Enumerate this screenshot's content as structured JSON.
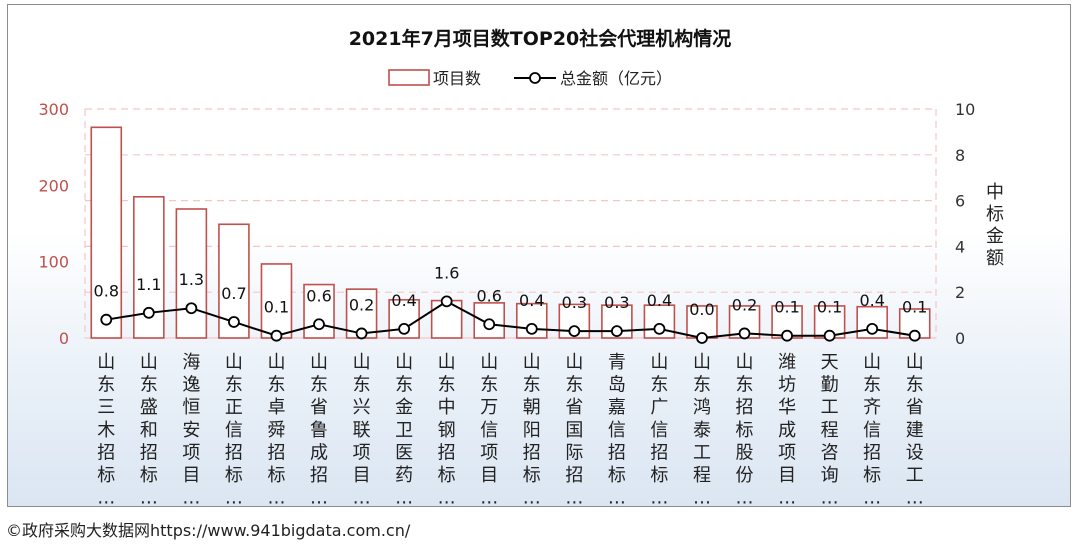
{
  "chart_data": {
    "type": "bar",
    "title": "2021年7月项目数TOP20社会代理机构情况",
    "categories": [
      "山东三木招标…",
      "山东盛和招标…",
      "海逸恒安项目…",
      "山东正信招标…",
      "山东卓舜招标…",
      "山东省鲁成招…",
      "山东兴联项目…",
      "山东金卫医药…",
      "山东中钢招标…",
      "山东万信项目…",
      "山东朝阳招标…",
      "山东省国际招…",
      "青岛嘉信招标…",
      "山东广信招标…",
      "山东鸿泰工程…",
      "山东招标股份…",
      "潍坊华成项目…",
      "天勤工程咨询…",
      "山东齐信招标…",
      "山东省建设工…"
    ],
    "series": [
      {
        "name": "项目数",
        "type": "bar",
        "axis": "left",
        "values": [
          276,
          185,
          169,
          149,
          97,
          70,
          64,
          50,
          49,
          46,
          45,
          44,
          43,
          43,
          42,
          42,
          42,
          42,
          41,
          38
        ]
      },
      {
        "name": "总金额（亿元）",
        "type": "line",
        "axis": "right",
        "values": [
          0.8,
          1.1,
          1.3,
          0.7,
          0.1,
          0.6,
          0.2,
          0.4,
          1.6,
          0.6,
          0.4,
          0.3,
          0.3,
          0.4,
          0.0,
          0.2,
          0.1,
          0.1,
          0.4,
          0.1
        ],
        "labels": [
          "0.8",
          "1.1",
          "1.3",
          "0.7",
          "0.1",
          "0.6",
          "0.2",
          "0.4",
          "1.6",
          "0.6",
          "0.4",
          "0.3",
          "0.3",
          "0.4",
          "0.0",
          "0.2",
          "0.1",
          "0.1",
          "0.4",
          "0.1"
        ]
      }
    ],
    "ylim_left": [
      0,
      300
    ],
    "yticks_left": [
      "0",
      "100",
      "200",
      "300"
    ],
    "ylim_right": [
      0,
      10
    ],
    "yticks_right": [
      "0",
      "2",
      "4",
      "6",
      "8",
      "10"
    ],
    "ylabel_right": "中标金额",
    "legend_position": "top-center",
    "grid": true,
    "colors": {
      "bar_edge": "#c0504d",
      "bar_fill": "#ffffff",
      "line": "#000000",
      "grid": "#f4c7c7"
    }
  },
  "footer": "©政府采购大数据网https://www.941bigdata.com.cn/"
}
